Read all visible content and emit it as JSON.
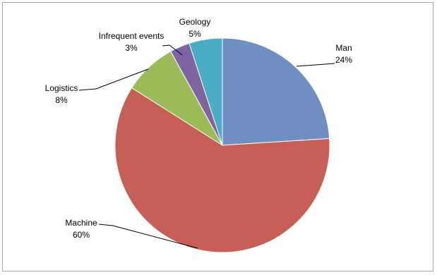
{
  "chart_data": {
    "type": "pie",
    "categories": [
      "Man",
      "Machine",
      "Logistics",
      "Infrequent events",
      "Geology"
    ],
    "values": [
      24,
      60,
      8,
      3,
      5
    ],
    "percent_labels": [
      "24%",
      "60%",
      "8%",
      "3%",
      "5%"
    ],
    "colors": [
      "#6f8fc2",
      "#c65f55",
      "#9bbb59",
      "#8064a2",
      "#4bacc6"
    ],
    "start": "12 o'clock",
    "direction": "clockwise",
    "legend": "none",
    "data_labels": "outside with leader lines"
  }
}
